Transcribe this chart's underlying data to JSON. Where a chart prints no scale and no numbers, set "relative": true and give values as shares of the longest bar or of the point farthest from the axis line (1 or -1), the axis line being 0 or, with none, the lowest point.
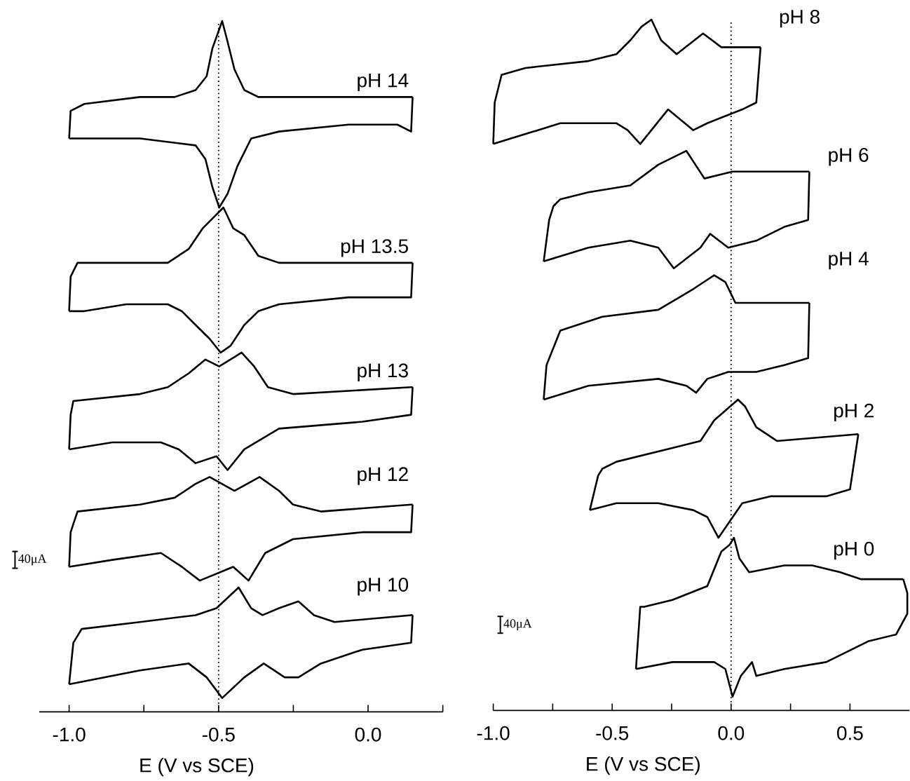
{
  "chart_data": [
    {
      "type": "line",
      "relative": true,
      "xlabel": "E (V vs SCE)",
      "xlim": [
        -1.1,
        0.25
      ],
      "xticks": [
        {
          "value": -1.0,
          "label": "-1.0"
        },
        {
          "value": -0.75,
          "label": null
        },
        {
          "value": -0.5,
          "label": "-0.5"
        },
        {
          "value": -0.25,
          "label": null
        },
        {
          "value": 0.0,
          "label": "0.0"
        },
        {
          "value": 0.25,
          "label": null
        }
      ],
      "line_style": "solid",
      "marker": "none",
      "grid": false,
      "ref_lines": [
        {
          "axis": "x",
          "value": -0.5,
          "line_style": "dotted",
          "color": "#000000"
        }
      ],
      "annotations": [
        "40μA"
      ],
      "series": [
        {
          "name": "pH 14",
          "color": "#000000",
          "x": [
            -1.0,
            -0.995,
            -0.949,
            -0.763,
            -0.647,
            -0.577,
            -0.54,
            -0.521,
            -0.488,
            -0.47,
            -0.447,
            -0.414,
            -0.367,
            -0.205,
            0.0,
            0.144,
            0.149
          ],
          "values": [
            0.83,
            0.87,
            0.88,
            0.89,
            0.89,
            0.9,
            0.92,
            0.96,
            1.0,
            0.97,
            0.93,
            0.9,
            0.89,
            0.89,
            0.89,
            0.89,
            0.89
          ]
        },
        {
          "color": "#000000",
          "x": [
            0.149,
            0.144,
            0.098,
            -0.065,
            -0.298,
            -0.391,
            -0.437,
            -0.47,
            -0.498,
            -0.521,
            -0.544,
            -0.577,
            -0.763,
            -1.0
          ],
          "values": [
            0.89,
            0.84,
            0.85,
            0.85,
            0.84,
            0.83,
            0.79,
            0.75,
            0.73,
            0.76,
            0.8,
            0.82,
            0.83,
            0.83
          ]
        },
        {
          "name": "pH 13.5",
          "color": "#000000",
          "x": [
            -1.0,
            -0.995,
            -0.972,
            -0.763,
            -0.67,
            -0.6,
            -0.553,
            -0.507,
            -0.484,
            -0.451,
            -0.414,
            -0.367,
            -0.298,
            0.0,
            0.149
          ],
          "values": [
            0.58,
            0.63,
            0.65,
            0.65,
            0.65,
            0.67,
            0.7,
            0.72,
            0.73,
            0.7,
            0.69,
            0.66,
            0.65,
            0.65,
            0.65
          ]
        },
        {
          "color": "#000000",
          "x": [
            0.149,
            0.144,
            -0.065,
            -0.298,
            -0.367,
            -0.414,
            -0.46,
            -0.493,
            -0.53,
            -0.577,
            -0.623,
            -0.67,
            -0.809,
            -0.949,
            -1.0
          ],
          "values": [
            0.65,
            0.6,
            0.6,
            0.59,
            0.58,
            0.56,
            0.53,
            0.52,
            0.54,
            0.56,
            0.58,
            0.59,
            0.59,
            0.58,
            0.58
          ]
        },
        {
          "name": "pH 13",
          "color": "#000000",
          "x": [
            -1.0,
            -0.995,
            -0.986,
            -0.763,
            -0.67,
            -0.6,
            -0.544,
            -0.498,
            -0.423,
            -0.381,
            -0.335,
            -0.251,
            0.144,
            0.149
          ],
          "values": [
            0.38,
            0.43,
            0.45,
            0.46,
            0.47,
            0.49,
            0.51,
            0.5,
            0.52,
            0.5,
            0.47,
            0.46,
            0.47,
            0.47
          ]
        },
        {
          "color": "#000000",
          "x": [
            0.149,
            0.144,
            -0.019,
            -0.298,
            -0.414,
            -0.47,
            -0.507,
            -0.577,
            -0.633,
            -0.693,
            -0.856,
            -1.0
          ],
          "values": [
            0.47,
            0.43,
            0.42,
            0.41,
            0.38,
            0.35,
            0.37,
            0.36,
            0.38,
            0.39,
            0.39,
            0.38
          ]
        },
        {
          "name": "pH 12",
          "color": "#000000",
          "x": [
            -1.0,
            -0.995,
            -0.972,
            -0.763,
            -0.647,
            -0.577,
            -0.53,
            -0.447,
            -0.363,
            -0.298,
            -0.251,
            -0.158,
            0.144,
            0.149
          ],
          "values": [
            0.21,
            0.26,
            0.29,
            0.3,
            0.31,
            0.33,
            0.34,
            0.32,
            0.34,
            0.32,
            0.3,
            0.29,
            0.3,
            0.3
          ]
        },
        {
          "color": "#000000",
          "x": [
            0.149,
            0.144,
            -0.019,
            -0.251,
            -0.344,
            -0.4,
            -0.451,
            -0.563,
            -0.623,
            -0.693,
            -0.856,
            -1.0
          ],
          "values": [
            0.3,
            0.26,
            0.26,
            0.25,
            0.23,
            0.19,
            0.21,
            0.19,
            0.21,
            0.23,
            0.22,
            0.21
          ]
        },
        {
          "name": "pH 10",
          "color": "#000000",
          "x": [
            -1.0,
            -0.986,
            -0.958,
            -0.763,
            -0.577,
            -0.507,
            -0.433,
            -0.391,
            -0.353,
            -0.298,
            -0.233,
            -0.181,
            -0.112,
            0.144,
            0.149
          ],
          "values": [
            0.04,
            0.1,
            0.12,
            0.13,
            0.14,
            0.15,
            0.18,
            0.15,
            0.14,
            0.15,
            0.16,
            0.14,
            0.13,
            0.14,
            0.14
          ]
        },
        {
          "color": "#000000",
          "x": [
            0.149,
            0.144,
            -0.019,
            -0.158,
            -0.233,
            -0.279,
            -0.349,
            -0.414,
            -0.488,
            -0.54,
            -0.6,
            -0.763,
            -1.0
          ],
          "values": [
            0.14,
            0.1,
            0.09,
            0.07,
            0.05,
            0.05,
            0.07,
            0.05,
            0.02,
            0.05,
            0.07,
            0.06,
            0.04
          ]
        }
      ]
    },
    {
      "type": "line",
      "relative": true,
      "xlabel": "E (V vs SCE)",
      "xlim": [
        -1.0,
        0.75
      ],
      "xticks": [
        {
          "value": -1.0,
          "label": "-1.0"
        },
        {
          "value": -0.75,
          "label": null
        },
        {
          "value": -0.5,
          "label": "-0.5"
        },
        {
          "value": -0.25,
          "label": null
        },
        {
          "value": 0.0,
          "label": "0.0"
        },
        {
          "value": 0.25,
          "label": null
        },
        {
          "value": 0.5,
          "label": "0.5"
        }
      ],
      "line_style": "solid",
      "marker": "none",
      "grid": false,
      "ref_lines": [
        {
          "axis": "x",
          "value": 0.0,
          "line_style": "dotted",
          "color": "#000000"
        }
      ],
      "annotations": [
        "40μA"
      ],
      "series": [
        {
          "name": "pH 8",
          "color": "#000000",
          "x": [
            -1.0,
            -0.994,
            -0.965,
            -0.865,
            -0.6,
            -0.482,
            -0.424,
            -0.376,
            -0.335,
            -0.294,
            -0.229,
            -0.118,
            -0.041,
            0.0,
            0.118,
            0.124
          ],
          "values": [
            0.82,
            0.88,
            0.92,
            0.93,
            0.94,
            0.95,
            0.97,
            0.99,
            1.0,
            0.97,
            0.95,
            0.98,
            0.96,
            0.96,
            0.96,
            0.96
          ]
        },
        {
          "color": "#000000",
          "x": [
            0.124,
            0.106,
            0.047,
            -0.1,
            -0.159,
            -0.265,
            -0.382,
            -0.435,
            -0.482,
            -0.718,
            -1.0
          ],
          "values": [
            0.96,
            0.88,
            0.87,
            0.85,
            0.84,
            0.87,
            0.82,
            0.84,
            0.85,
            0.85,
            0.82
          ]
        },
        {
          "name": "pH 6",
          "color": "#000000",
          "x": [
            -0.788,
            -0.765,
            -0.747,
            -0.718,
            -0.6,
            -0.424,
            -0.306,
            -0.188,
            -0.112,
            0.006,
            0.076,
            0.153,
            0.329
          ],
          "values": [
            0.65,
            0.71,
            0.73,
            0.74,
            0.75,
            0.76,
            0.79,
            0.81,
            0.77,
            0.78,
            0.78,
            0.78,
            0.78
          ]
        },
        {
          "color": "#000000",
          "x": [
            0.329,
            0.324,
            0.224,
            0.106,
            -0.012,
            -0.088,
            -0.129,
            -0.241,
            -0.306,
            -0.424,
            -0.6,
            -0.788
          ],
          "values": [
            0.78,
            0.71,
            0.7,
            0.68,
            0.67,
            0.69,
            0.67,
            0.64,
            0.67,
            0.68,
            0.67,
            0.65
          ]
        },
        {
          "name": "pH 4",
          "color": "#000000",
          "x": [
            -0.788,
            -0.776,
            -0.718,
            -0.541,
            -0.306,
            -0.159,
            -0.071,
            -0.024,
            0.018,
            0.106,
            0.329
          ],
          "values": [
            0.45,
            0.5,
            0.55,
            0.57,
            0.58,
            0.61,
            0.63,
            0.62,
            0.59,
            0.59,
            0.59
          ]
        },
        {
          "color": "#000000",
          "x": [
            0.329,
            0.324,
            0.224,
            0.106,
            -0.012,
            -0.1,
            -0.147,
            -0.188,
            -0.306,
            -0.6,
            -0.788
          ],
          "values": [
            0.59,
            0.51,
            0.5,
            0.49,
            0.49,
            0.48,
            0.46,
            0.47,
            0.48,
            0.47,
            0.45
          ]
        },
        {
          "name": "pH 2",
          "color": "#000000",
          "x": [
            -0.594,
            -0.559,
            -0.541,
            -0.482,
            -0.247,
            -0.129,
            -0.071,
            0.029,
            0.059,
            0.106,
            0.194,
            0.535
          ],
          "values": [
            0.29,
            0.34,
            0.35,
            0.36,
            0.38,
            0.39,
            0.42,
            0.45,
            0.44,
            0.41,
            0.39,
            0.4
          ]
        },
        {
          "color": "#000000",
          "x": [
            0.535,
            0.5,
            0.4,
            0.165,
            0.047,
            -0.053,
            -0.1,
            -0.159,
            -0.306,
            -0.482,
            -0.594
          ],
          "values": [
            0.4,
            0.32,
            0.31,
            0.31,
            0.3,
            0.25,
            0.28,
            0.29,
            0.3,
            0.3,
            0.29
          ]
        },
        {
          "name": "pH 0",
          "color": "#000000",
          "x": [
            -0.4,
            -0.382,
            -0.365,
            -0.247,
            -0.1,
            -0.041,
            -0.006,
            0.012,
            0.035,
            0.076,
            0.224,
            0.341,
            0.459,
            0.547,
            0.635,
            0.724
          ],
          "values": [
            0.06,
            0.15,
            0.15,
            0.16,
            0.18,
            0.23,
            0.24,
            0.25,
            0.22,
            0.2,
            0.21,
            0.21,
            0.2,
            0.19,
            0.19,
            0.19
          ]
        },
        {
          "color": "#000000",
          "x": [
            0.724,
            0.741,
            0.741,
            0.694,
            0.576,
            0.4,
            0.224,
            0.106,
            0.088,
            0.041,
            0.006,
            -0.024,
            -0.071,
            -0.247,
            -0.4
          ],
          "values": [
            0.19,
            0.17,
            0.14,
            0.11,
            0.1,
            0.07,
            0.06,
            0.05,
            0.07,
            0.05,
            0.02,
            0.06,
            0.07,
            0.07,
            0.06
          ]
        }
      ]
    }
  ]
}
